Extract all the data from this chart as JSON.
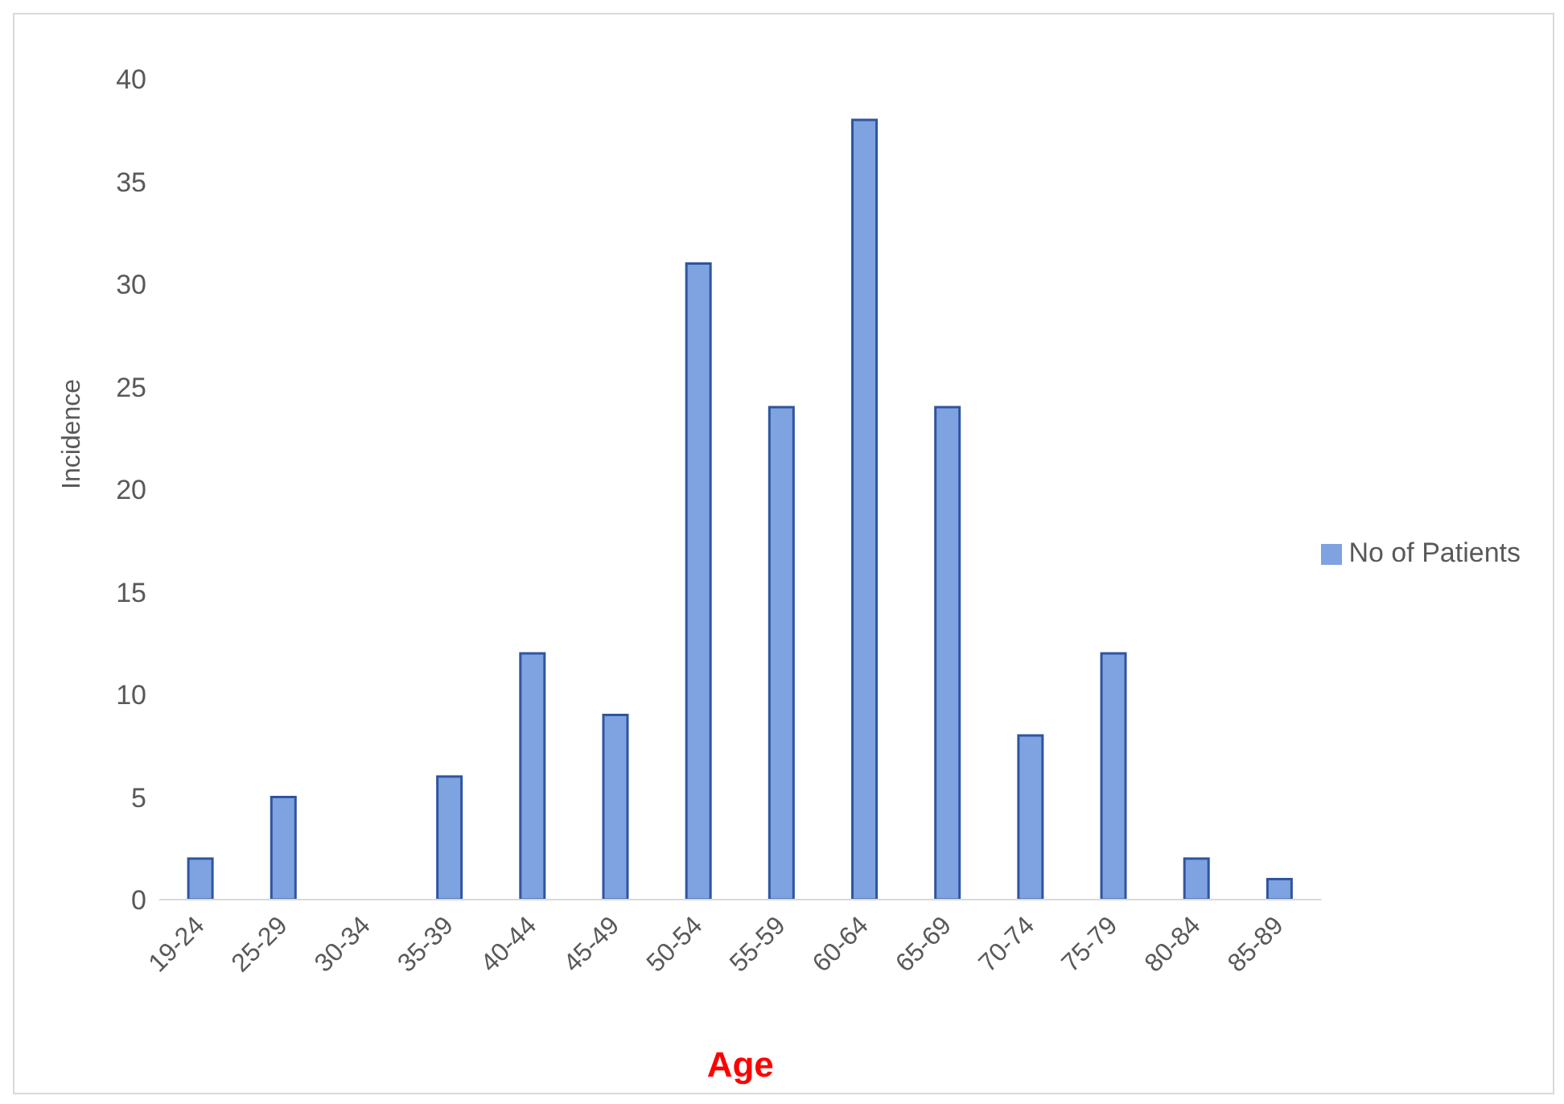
{
  "chart_data": {
    "type": "bar",
    "xlabel": "Age",
    "ylabel": "Incidence",
    "categories": [
      "19-24",
      "25-29",
      "30-34",
      "35-39",
      "40-44",
      "45-49",
      "50-54",
      "55-59",
      "60-64",
      "65-69",
      "70-74",
      "75-79",
      "80-84",
      "85-89"
    ],
    "series": [
      {
        "name": "No of Patients",
        "color": "#7ea3e0",
        "values": [
          2,
          5,
          0,
          6,
          12,
          9,
          31,
          24,
          38,
          24,
          8,
          12,
          2,
          1
        ]
      }
    ],
    "ylim": [
      0,
      40
    ],
    "yticks": [
      0,
      5,
      10,
      15,
      20,
      25,
      30,
      35,
      40
    ],
    "grid": false,
    "legend": "right"
  }
}
